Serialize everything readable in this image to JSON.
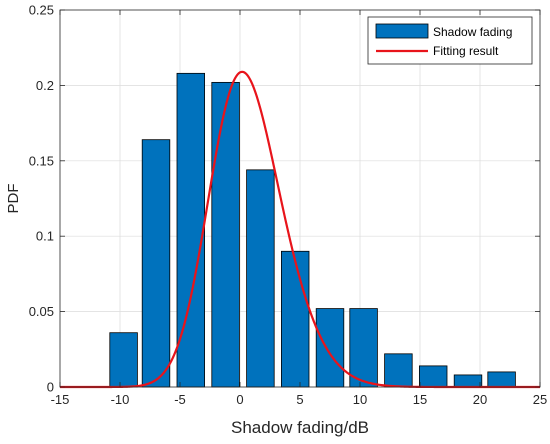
{
  "chart_data": {
    "type": "bar",
    "xlabel": "Shadow fading/dB",
    "ylabel": "PDF",
    "xlim": [
      -15,
      25
    ],
    "ylim": [
      0,
      0.25
    ],
    "grid": true,
    "legend_position": "top-right",
    "xticks": [
      -15,
      -10,
      -5,
      0,
      5,
      10,
      15,
      20,
      25
    ],
    "xtick_labels": [
      "-15",
      "-10",
      "-5",
      "0",
      "5",
      "10",
      "15",
      "20",
      "25"
    ],
    "yticks": [
      0,
      0.05,
      0.1,
      0.15,
      0.2,
      0.25
    ],
    "ytick_labels": [
      "0",
      "0.05",
      "0.1",
      "0.15",
      "0.2",
      "0.25"
    ],
    "bar_width": 2.3,
    "series": [
      {
        "name": "Shadow fading",
        "kind": "bar",
        "color": "#0072BD",
        "x": [
          -9.7,
          -7.0,
          -4.1,
          -1.2,
          1.7,
          4.6,
          7.5,
          10.3,
          13.2,
          16.1,
          19.0,
          21.8
        ],
        "values": [
          0.036,
          0.164,
          0.208,
          0.202,
          0.144,
          0.09,
          0.052,
          0.052,
          0.022,
          0.014,
          0.008,
          0.01
        ]
      },
      {
        "name": "Fitting result",
        "kind": "line",
        "color": "#E8141B",
        "distribution": {
          "mu": -2.1,
          "sigma": 4.2,
          "skew": 1.6,
          "peak": 0.209
        }
      }
    ]
  }
}
